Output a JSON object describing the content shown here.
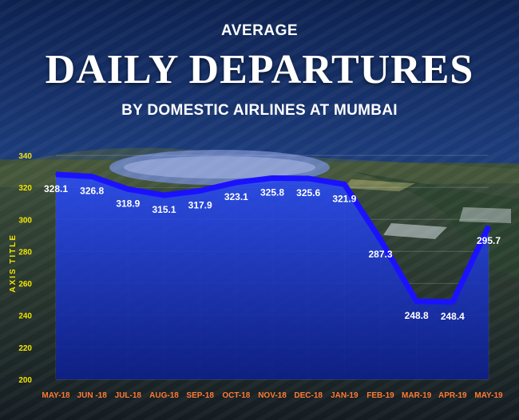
{
  "header": {
    "kicker": "AVERAGE",
    "title": "DAILY DEPARTURES",
    "subtitle": "BY DOMESTIC AIRLINES AT MUMBAI"
  },
  "colors": {
    "line": "#1a12ff",
    "area_top": "#2a4cff",
    "area_bottom": "#0d1f8c",
    "tick_y": "#f2e500",
    "tick_x": "#ff7a33",
    "label": "#ffffff"
  },
  "chart_data": {
    "type": "area",
    "title": "DAILY DEPARTURES",
    "subtitle": "BY DOMESTIC AIRLINES AT MUMBAI",
    "ylabel": "AXIS TITLE",
    "xlabel": "",
    "categories": [
      "MAY-18",
      "JUN -18",
      "JUL-18",
      "AUG-18",
      "SEP-18",
      "OCT-18",
      "NOV-18",
      "DEC-18",
      "JAN-19",
      "FEB-19",
      "MAR-19",
      "APR-19",
      "MAY-19"
    ],
    "values": [
      328.1,
      326.8,
      318.9,
      315.1,
      317.9,
      323.1,
      325.8,
      325.6,
      321.9,
      287.3,
      248.8,
      248.4,
      295.7
    ],
    "data_labels": [
      "328.1",
      "326.8",
      "318.9",
      "315.1",
      "317.9",
      "323.1",
      "325.8",
      "325.6",
      "321.9",
      "287.3",
      "248.8",
      "248.4",
      "295.7"
    ],
    "yticks": [
      200,
      220,
      240,
      260,
      280,
      300,
      320,
      340
    ],
    "ylim": [
      200,
      340
    ],
    "grid": true,
    "legend": "none"
  }
}
